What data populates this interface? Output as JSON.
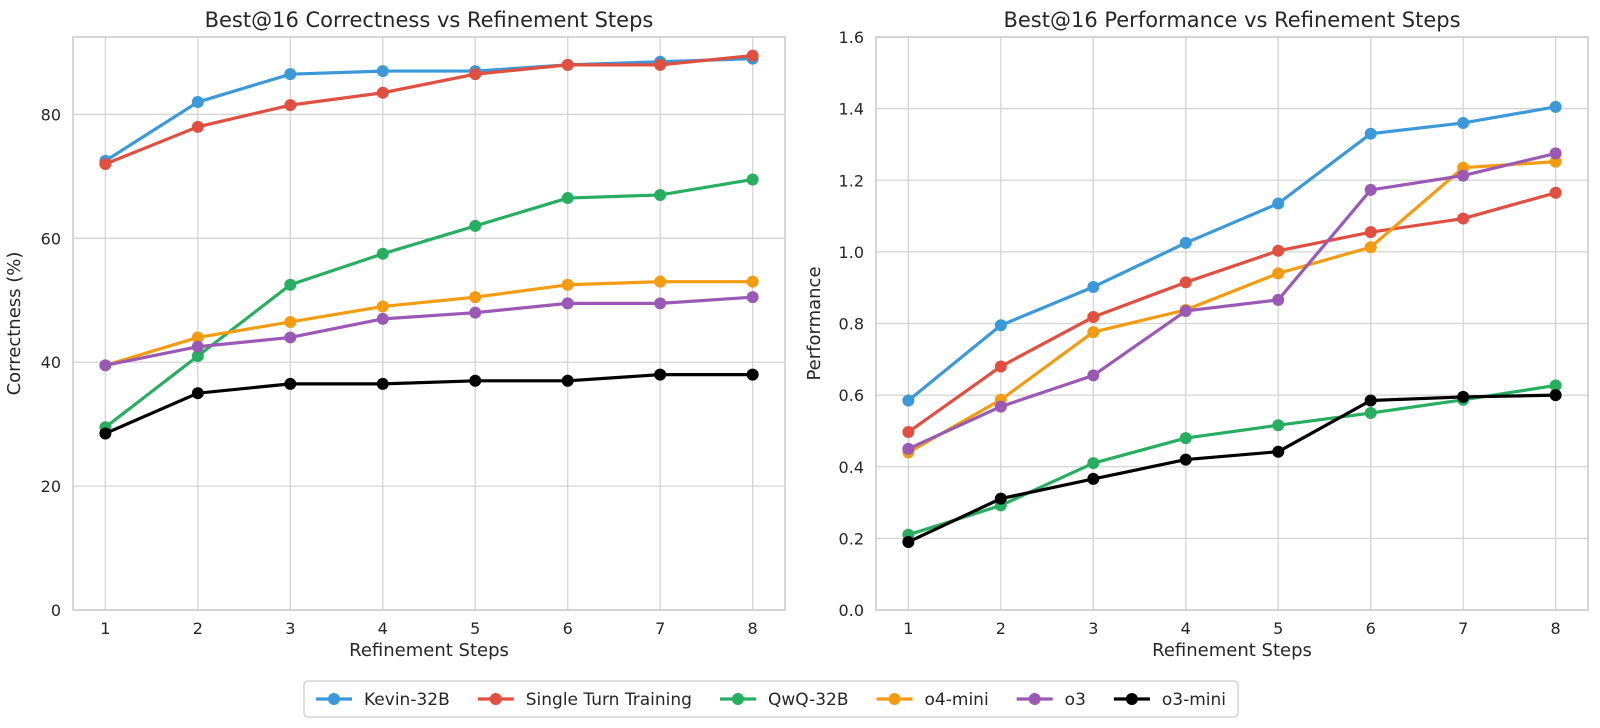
{
  "chart_data": [
    {
      "type": "line",
      "title": "Best@16 Correctness vs Refinement Steps",
      "xlabel": "Refinement Steps",
      "ylabel": "Correctness (%)",
      "x": [
        1,
        2,
        3,
        4,
        5,
        6,
        7,
        8
      ],
      "xlim": [
        0.65,
        8.35
      ],
      "ylim": [
        0,
        92.5
      ],
      "yticks": [
        0,
        20,
        40,
        60,
        80
      ],
      "yticklabels": [
        "0",
        "20",
        "40",
        "60",
        "80"
      ],
      "grid": true,
      "series": [
        {
          "name": "Kevin-32B",
          "color": "#3b99d9",
          "values": [
            72.5,
            82,
            86.5,
            87,
            87,
            88,
            88.5,
            89
          ]
        },
        {
          "name": "Single Turn Training",
          "color": "#e04f3f",
          "values": [
            72,
            78,
            81.5,
            83.5,
            86.5,
            88,
            88,
            89.5
          ]
        },
        {
          "name": "QwQ-32B",
          "color": "#27ae60",
          "values": [
            29.5,
            41,
            52.5,
            57.5,
            62,
            66.5,
            67,
            69.5
          ]
        },
        {
          "name": "o4-mini",
          "color": "#f39c12",
          "values": [
            39.5,
            44,
            46.5,
            49,
            50.5,
            52.5,
            53,
            53
          ]
        },
        {
          "name": "o3",
          "color": "#9b59b6",
          "values": [
            39.5,
            42.5,
            44,
            47,
            48,
            49.5,
            49.5,
            50.5
          ]
        },
        {
          "name": "o3-mini",
          "color": "#000000",
          "values": [
            28.5,
            35,
            36.5,
            36.5,
            37,
            37,
            38,
            38
          ]
        }
      ]
    },
    {
      "type": "line",
      "title": "Best@16 Performance vs Refinement Steps",
      "xlabel": "Refinement Steps",
      "ylabel": "Performance",
      "x": [
        1,
        2,
        3,
        4,
        5,
        6,
        7,
        8
      ],
      "xlim": [
        0.65,
        8.35
      ],
      "ylim": [
        0,
        1.6
      ],
      "yticks": [
        0,
        0.2,
        0.4,
        0.6,
        0.8,
        1.0,
        1.2,
        1.4,
        1.6
      ],
      "yticklabels": [
        "0.0",
        "0.2",
        "0.4",
        "0.6",
        "0.8",
        "1.0",
        "1.2",
        "1.4",
        "1.6"
      ],
      "grid": true,
      "series": [
        {
          "name": "Kevin-32B",
          "color": "#3b99d9",
          "values": [
            0.585,
            0.795,
            0.902,
            1.025,
            1.135,
            1.33,
            1.36,
            1.405
          ]
        },
        {
          "name": "Single Turn Training",
          "color": "#e04f3f",
          "values": [
            0.497,
            0.68,
            0.818,
            0.915,
            1.003,
            1.055,
            1.093,
            1.165
          ]
        },
        {
          "name": "QwQ-32B",
          "color": "#27ae60",
          "values": [
            0.21,
            0.292,
            0.41,
            0.48,
            0.516,
            0.55,
            0.587,
            0.627
          ]
        },
        {
          "name": "o4-mini",
          "color": "#f39c12",
          "values": [
            0.44,
            0.587,
            0.776,
            0.838,
            0.94,
            1.013,
            1.235,
            1.252
          ]
        },
        {
          "name": "o3",
          "color": "#9b59b6",
          "values": [
            0.45,
            0.568,
            0.655,
            0.835,
            0.866,
            1.173,
            1.213,
            1.275
          ]
        },
        {
          "name": "o3-mini",
          "color": "#000000",
          "values": [
            0.19,
            0.311,
            0.366,
            0.42,
            0.442,
            0.585,
            0.595,
            0.6
          ]
        }
      ]
    }
  ],
  "legend": {
    "placement": "bottom-center",
    "entries": [
      {
        "label": "Kevin-32B",
        "color": "#3b99d9"
      },
      {
        "label": "Single Turn Training",
        "color": "#e04f3f"
      },
      {
        "label": "QwQ-32B",
        "color": "#27ae60"
      },
      {
        "label": "o4-mini",
        "color": "#f39c12"
      },
      {
        "label": "o3",
        "color": "#9b59b6"
      },
      {
        "label": "o3-mini",
        "color": "#000000"
      }
    ]
  }
}
